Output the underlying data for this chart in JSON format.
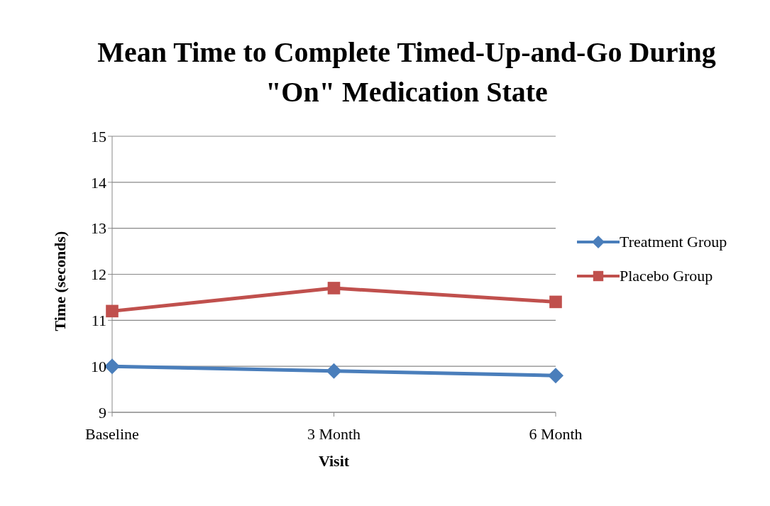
{
  "chart_data": {
    "type": "line",
    "title": "Mean Time to Complete Timed-Up-and-Go During \"On\" Medication State",
    "xlabel": "Visit",
    "ylabel": "Time (seconds)",
    "categories": [
      "Baseline",
      "3 Month",
      "6 Month"
    ],
    "series": [
      {
        "name": "Treatment Group",
        "color": "#4a7ebb",
        "marker": "diamond",
        "values": [
          10.0,
          9.9,
          9.8
        ]
      },
      {
        "name": "Placebo Group",
        "color": "#c0504d",
        "marker": "square",
        "values": [
          11.2,
          11.7,
          11.4
        ]
      }
    ],
    "ylim": [
      9,
      15
    ],
    "yticks": [
      9,
      10,
      11,
      12,
      13,
      14,
      15
    ],
    "grid": "y",
    "legend": "right"
  }
}
